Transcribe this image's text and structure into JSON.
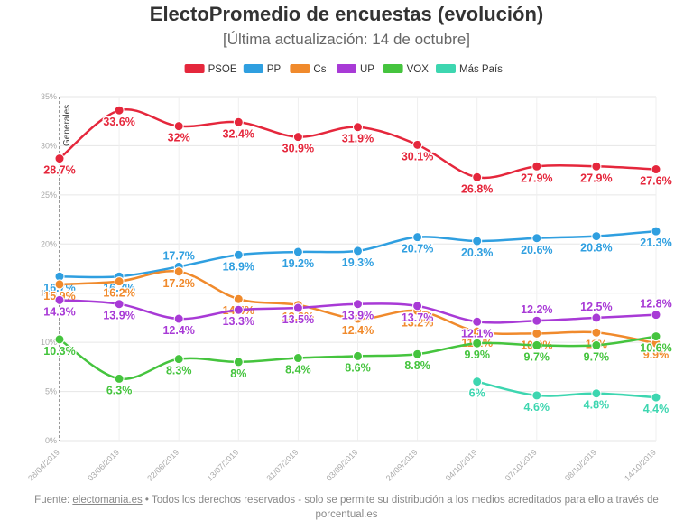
{
  "header": {
    "title": "ElectoPromedio de encuestas (evolución)",
    "subtitle": "[Última actualización: 14 de octubre]"
  },
  "footer": {
    "prefix": "Fuente: ",
    "link": "electomania.es",
    "text": " • Todos los derechos reservados - solo se permite su distribución a los medios acreditados para ello a través de porcentual.es"
  },
  "chart_data": {
    "type": "line",
    "title": "ElectoPromedio de encuestas (evolución)",
    "subtitle": "[Última actualización: 14 de octubre]",
    "x": [
      "28/04/2019",
      "03/06/2019",
      "22/06/2019",
      "13/07/2019",
      "31/07/2019",
      "03/09/2019",
      "24/09/2019",
      "04/10/2019",
      "07/10/2019",
      "08/10/2019",
      "14/10/2019"
    ],
    "ylim": [
      0,
      35
    ],
    "yticks": [
      "0%",
      "5%",
      "10%",
      "15%",
      "20%",
      "25%",
      "30%",
      "35%"
    ],
    "legend_position": "top",
    "annotation": "Generales",
    "series": [
      {
        "name": "PSOE",
        "color": "#e5273c",
        "values": [
          28.7,
          33.6,
          32,
          32.4,
          30.9,
          31.9,
          30.1,
          26.8,
          27.9,
          27.9,
          27.6
        ],
        "labels": [
          "28.7%",
          "33.6%",
          "32%",
          "32.4%",
          "30.9%",
          "31.9%",
          "30.1%",
          "26.8%",
          "27.9%",
          "27.9%",
          "27.6%"
        ]
      },
      {
        "name": "PP",
        "color": "#2f9fe0",
        "values": [
          16.7,
          16.7,
          17.7,
          18.9,
          19.2,
          19.3,
          20.7,
          20.3,
          20.6,
          20.8,
          21.3
        ],
        "labels": [
          "16.7%",
          "16.7%",
          "17.7%",
          "18.9%",
          "19.2%",
          "19.3%",
          "20.7%",
          "20.3%",
          "20.6%",
          "20.8%",
          "21.3%"
        ]
      },
      {
        "name": "Cs",
        "color": "#f08a2c",
        "values": [
          15.9,
          16.2,
          17.2,
          14.4,
          13.8,
          12.4,
          13.2,
          11.1,
          10.9,
          11,
          9.9
        ],
        "labels": [
          "15.9%",
          "16.2%",
          "17.2%",
          "14.4%",
          "13.8%",
          "12.4%",
          "13.2%",
          "11.1%",
          "10.9%",
          "11%",
          "9.9%"
        ]
      },
      {
        "name": "UP",
        "color": "#a83ad6",
        "values": [
          14.3,
          13.9,
          12.4,
          13.3,
          13.5,
          13.9,
          13.7,
          12.1,
          12.2,
          12.5,
          12.8
        ],
        "labels": [
          "14.3%",
          "13.9%",
          "12.4%",
          "13.3%",
          "13.5%",
          "13.9%",
          "13.7%",
          "12.1%",
          "12.2%",
          "12.5%",
          "12.8%"
        ]
      },
      {
        "name": "VOX",
        "color": "#45c43e",
        "values": [
          10.3,
          6.3,
          8.3,
          8,
          8.4,
          8.6,
          8.8,
          9.9,
          9.7,
          9.7,
          10.6
        ],
        "labels": [
          "10.3%",
          "6.3%",
          "8.3%",
          "8%",
          "8.4%",
          "8.6%",
          "8.8%",
          "9.9%",
          "9.7%",
          "9.7%",
          "10.6%"
        ]
      },
      {
        "name": "Más País",
        "color": "#3dd6b0",
        "values": [
          null,
          null,
          null,
          null,
          null,
          null,
          null,
          6,
          4.6,
          4.8,
          4.4
        ],
        "labels": [
          null,
          null,
          null,
          null,
          null,
          null,
          null,
          "6%",
          "4.6%",
          "4.8%",
          "4.4%"
        ]
      }
    ]
  }
}
